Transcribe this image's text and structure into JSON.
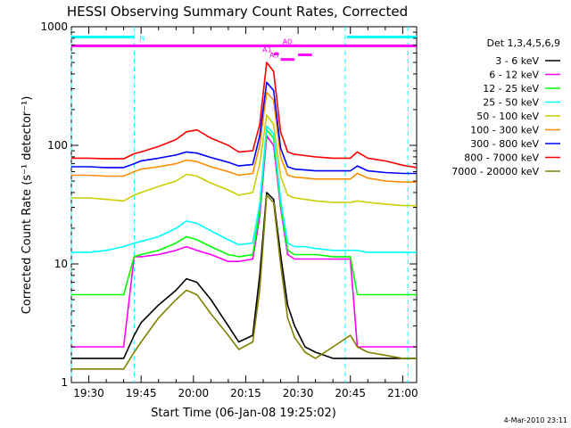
{
  "chart_data": {
    "type": "line",
    "title": "HESSI Observing Summary Count Rates, Corrected",
    "xlabel": "Start Time (06-Jan-08 19:25:02)",
    "ylabel": "Corrected Count Rate (s⁻¹ detector⁻¹)",
    "yscale": "log",
    "ylim": [
      1,
      1000
    ],
    "xlim_minutes": [
      0,
      99
    ],
    "x_ticks": [
      {
        "minute": 5,
        "label": "19:30"
      },
      {
        "minute": 20,
        "label": "19:45"
      },
      {
        "minute": 35,
        "label": "20:00"
      },
      {
        "minute": 50,
        "label": "20:15"
      },
      {
        "minute": 65,
        "label": "20:30"
      },
      {
        "minute": 80,
        "label": "20:45"
      },
      {
        "minute": 95,
        "label": "21:00"
      }
    ],
    "y_ticks": [
      {
        "value": 1,
        "label": "1"
      },
      {
        "value": 10,
        "label": "10"
      },
      {
        "value": 100,
        "label": "100"
      },
      {
        "value": 1000,
        "label": "1000"
      }
    ],
    "legend_title": "Det 1,3,4,5,6,9",
    "legend_position": "right",
    "x_time_points": [
      0,
      5,
      10,
      15,
      18,
      20,
      25,
      30,
      33,
      36,
      40,
      45,
      48,
      52,
      54,
      56,
      58,
      60,
      62,
      64,
      67,
      70,
      75,
      80,
      82,
      85,
      90,
      95,
      99
    ],
    "series": [
      {
        "name": "3 - 6 keV",
        "color": "#000000",
        "values": [
          1.6,
          1.6,
          1.6,
          1.6,
          2.5,
          3.2,
          4.5,
          6.0,
          7.5,
          7.0,
          5.0,
          3.0,
          2.2,
          2.5,
          8.0,
          40,
          35,
          12,
          4.5,
          3.0,
          2.0,
          1.8,
          1.6,
          1.6,
          1.6,
          1.6,
          1.6,
          1.6,
          1.6
        ]
      },
      {
        "name": "6 - 12 keV",
        "color": "#ff00ff",
        "values": [
          2.0,
          2.0,
          2.0,
          2.0,
          11.5,
          11.5,
          12.0,
          13.0,
          14.0,
          13.0,
          12.0,
          10.5,
          10.5,
          11.0,
          25,
          120,
          100,
          30,
          12,
          11,
          11,
          11,
          11,
          11,
          2.0,
          2.0,
          2.0,
          2.0,
          2.0
        ]
      },
      {
        "name": "12 - 25 keV",
        "color": "#00ff00",
        "values": [
          5.5,
          5.5,
          5.5,
          5.5,
          11.5,
          12.0,
          13.0,
          15.0,
          17.0,
          16.0,
          14.0,
          12.0,
          11.5,
          12.0,
          28,
          135,
          115,
          32,
          13,
          12,
          12,
          12,
          11.5,
          11.5,
          5.5,
          5.5,
          5.5,
          5.5,
          5.5
        ]
      },
      {
        "name": "25 - 50 keV",
        "color": "#00ffff",
        "values": [
          12.5,
          12.5,
          13,
          14,
          15,
          15.5,
          17,
          20,
          23,
          22,
          19,
          16,
          14.5,
          15,
          32,
          145,
          125,
          35,
          15,
          14,
          14,
          13.5,
          13,
          13,
          13,
          12.5,
          12.5,
          12.5,
          12.5
        ]
      },
      {
        "name": "50 - 100 keV",
        "color": "#cccc00",
        "values": [
          36,
          36,
          35,
          34,
          38,
          40,
          45,
          50,
          57,
          55,
          48,
          42,
          38,
          40,
          70,
          180,
          150,
          55,
          38,
          36,
          35,
          34,
          33,
          33,
          34,
          33,
          32,
          31,
          31
        ]
      },
      {
        "name": "100 - 300 keV",
        "color": "#ff8c00",
        "values": [
          56,
          56,
          55,
          55,
          60,
          63,
          66,
          70,
          75,
          73,
          66,
          60,
          56,
          58,
          100,
          280,
          240,
          80,
          56,
          54,
          53,
          52,
          52,
          52,
          58,
          53,
          50,
          49,
          49
        ]
      },
      {
        "name": "300 - 800 keV",
        "color": "#0000ff",
        "values": [
          66,
          66,
          65,
          65,
          70,
          74,
          78,
          83,
          88,
          86,
          79,
          72,
          67,
          69,
          120,
          340,
          290,
          95,
          66,
          63,
          62,
          61,
          61,
          61,
          67,
          61,
          59,
          58,
          58
        ]
      },
      {
        "name": "800 - 7000 keV",
        "color": "#ff0000",
        "values": [
          78,
          78,
          77,
          77,
          85,
          88,
          98,
          112,
          130,
          135,
          115,
          100,
          88,
          90,
          150,
          500,
          420,
          130,
          88,
          84,
          82,
          80,
          78,
          78,
          88,
          78,
          74,
          68,
          65
        ]
      },
      {
        "name": "7000 - 20000 keV",
        "color": "#808000",
        "values": [
          1.3,
          1.3,
          1.3,
          1.3,
          1.8,
          2.2,
          3.5,
          5.0,
          6.0,
          5.5,
          3.8,
          2.5,
          1.9,
          2.2,
          6.0,
          38,
          33,
          10,
          3.5,
          2.4,
          1.8,
          1.6,
          2.0,
          2.5,
          2.0,
          1.8,
          1.7,
          1.6,
          1.6
        ]
      }
    ],
    "dashed_time_markers": [
      {
        "minute": 0,
        "color": "#00ffff"
      },
      {
        "minute": 18,
        "color": "#00ffff"
      },
      {
        "minute": 78.5,
        "color": "#00ffff"
      },
      {
        "minute": 96.5,
        "color": "#00ffff"
      }
    ],
    "flag_bars": [
      {
        "label": "N",
        "color": "#00ffff",
        "y": 820,
        "segments": [
          [
            0,
            18
          ]
        ]
      },
      {
        "label": "",
        "color": "#00ffff",
        "y": 820,
        "segments": [
          [
            79,
            99
          ]
        ]
      },
      {
        "label": "",
        "color": "#ff00ff",
        "y": 690,
        "segments": [
          [
            0,
            99
          ]
        ]
      },
      {
        "label": "A0",
        "color": "#ff00ff",
        "y": 690,
        "segments": [
          [
            59,
            66
          ]
        ]
      },
      {
        "label": "A1",
        "color": "#ff00ff",
        "y": 590,
        "segments": [
          [
            58,
            59.5
          ]
        ]
      },
      {
        "label": "A3",
        "color": "#ff00ff",
        "y": 530,
        "segments": [
          [
            60,
            64
          ]
        ]
      },
      {
        "label": "",
        "color": "#ff00ff",
        "y": 580,
        "segments": [
          [
            65,
            69
          ]
        ]
      }
    ]
  },
  "footer": {
    "timestamp": "4-Mar-2010 23:11"
  }
}
